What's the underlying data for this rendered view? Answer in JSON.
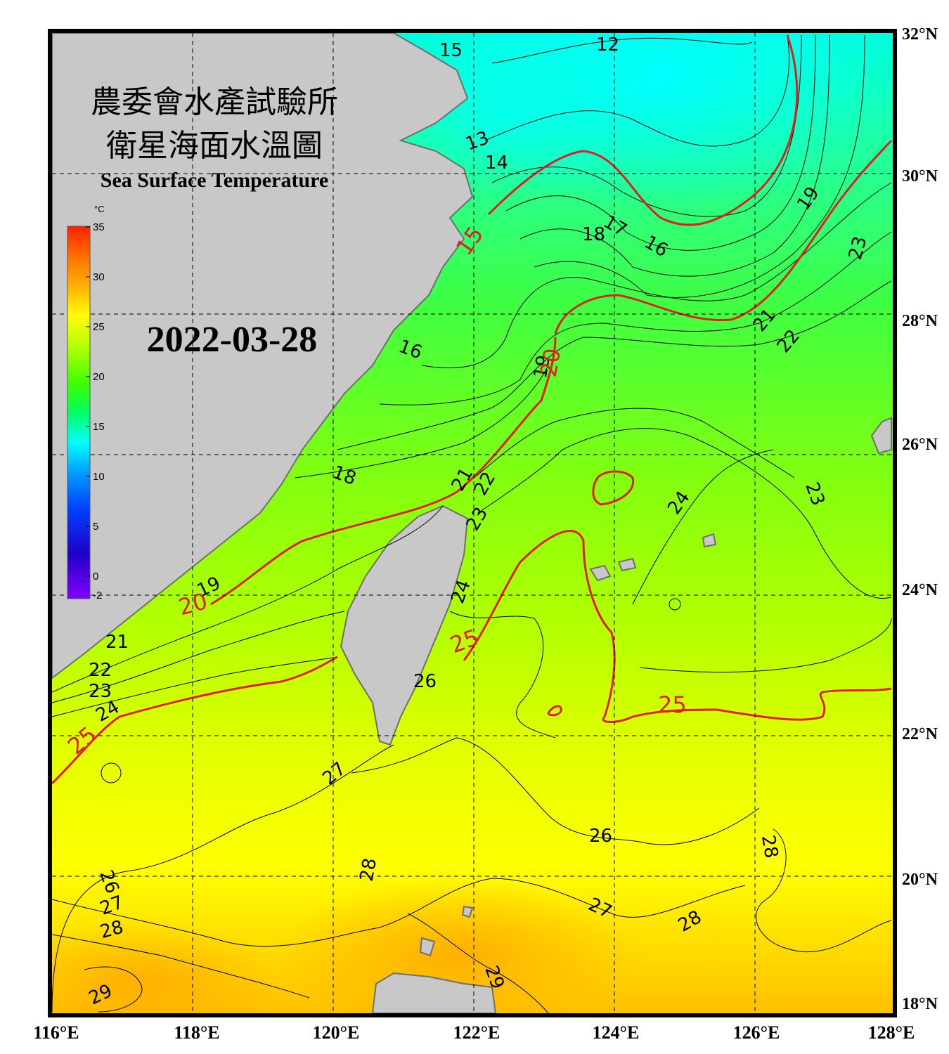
{
  "title": {
    "line1": "農委會水產試驗所",
    "line2": "衛星海面水溫圖",
    "line3": "Sea Surface Temperature"
  },
  "date": "2022-03-28",
  "colorbar": {
    "unit": "°C",
    "ticks": [
      "35",
      "30",
      "25",
      "20",
      "15",
      "10",
      "5",
      "0",
      "-2"
    ]
  },
  "axes": {
    "lon_labels": [
      "116°E",
      "118°E",
      "120°E",
      "122°E",
      "124°E",
      "126°E",
      "128°E"
    ],
    "lat_labels": [
      "32°N",
      "30°N",
      "28°N",
      "26°N",
      "24°N",
      "22°N",
      "20°N",
      "18°N"
    ],
    "lon_range": [
      116,
      128
    ],
    "lat_range": [
      18,
      32
    ],
    "grid": "dashed"
  },
  "contour_labels": {
    "black": [
      "12",
      "13",
      "14",
      "15",
      "16",
      "17",
      "18",
      "16",
      "18",
      "19",
      "19",
      "19",
      "21",
      "21",
      "22",
      "22",
      "23",
      "23",
      "24",
      "24",
      "24",
      "21",
      "22",
      "23",
      "26",
      "26",
      "27",
      "27",
      "26",
      "27",
      "28",
      "28",
      "28",
      "28",
      "29",
      "29",
      "23"
    ],
    "red": [
      "15",
      "20",
      "20",
      "25",
      "25",
      "25"
    ]
  },
  "colors": {
    "land": "#c8c8c8",
    "coast": "#6e6e6e",
    "contour_black": "#000000",
    "contour_red": "#e02020",
    "frame": "#000000"
  }
}
